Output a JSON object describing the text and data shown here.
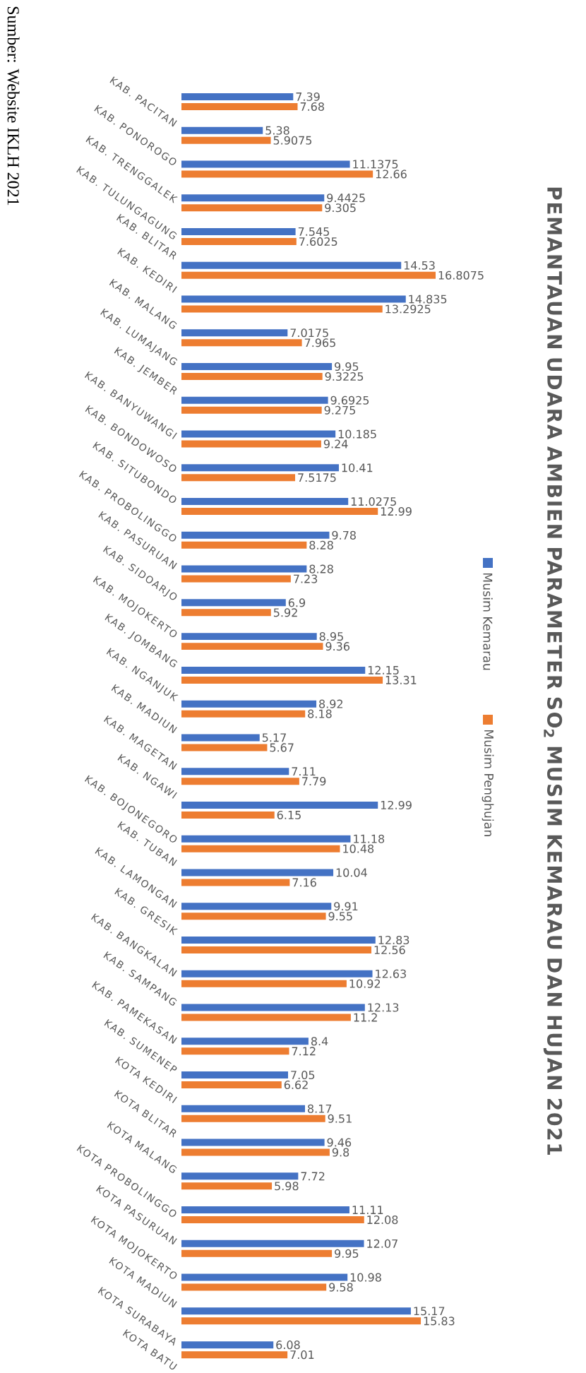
{
  "chart_data": {
    "type": "bar",
    "orientation": "horizontal",
    "title": "PEMANTAUAN UDARA AMBIEN PARAMETER SO$_{2}$ MUSIM KEMARAU DAN HUJAN 2021",
    "categories": [
      "KAB. PACITAN",
      "KAB. PONOROGO",
      "KAB. TRENGGALEK",
      "KAB. TULUNGAGUNG",
      "KAB. BLITAR",
      "KAB. KEDIRI",
      "KAB. MALANG",
      "KAB. LUMAJANG",
      "KAB. JEMBER",
      "KAB. BANYUWANGI",
      "KAB. BONDOWOSO",
      "KAB. SITUBONDO",
      "KAB. PROBOLINGGO",
      "KAB. PASURUAN",
      "KAB. SIDOARJO",
      "KAB. MOJOKERTO",
      "KAB. JOMBANG",
      "KAB. NGANJUK",
      "KAB. MADIUN",
      "KAB. MAGETAN",
      "KAB. NGAWI",
      "KAB. BOJONEGORO",
      "KAB. TUBAN",
      "KAB. LAMONGAN",
      "KAB. GRESIK",
      "KAB. BANGKALAN",
      "KAB. SAMPANG",
      "KAB. PAMEKASAN",
      "KAB. SUMENEP",
      "KOTA KEDIRI",
      "KOTA BLITAR",
      "KOTA MALANG",
      "KOTA PROBOLINGGO",
      "KOTA PASURUAN",
      "KOTA MOJOKERTO",
      "KOTA MADIUN",
      "KOTA SURABAYA",
      "KOTA BATU"
    ],
    "series": [
      {
        "name": "Musim Kemarau",
        "color": "#4472c4",
        "values": [
          7.39,
          5.38,
          11.1375,
          9.4425,
          7.545,
          14.53,
          14.835,
          7.0175,
          9.95,
          9.6925,
          10.185,
          10.41,
          11.0275,
          9.78,
          8.28,
          6.9,
          8.95,
          12.15,
          8.92,
          5.17,
          7.11,
          12.99,
          11.18,
          10.04,
          9.91,
          12.83,
          12.63,
          12.13,
          8.4,
          7.05,
          8.17,
          9.46,
          7.72,
          11.11,
          12.07,
          10.98,
          15.17,
          6.08
        ],
        "value_labels": [
          "7.39",
          "5.38",
          "11.1375",
          "9.4425",
          "7.545",
          "14.53",
          "14.835",
          "7.0175",
          "9.95",
          "9.6925",
          "10.185",
          "10.41",
          "11.0275",
          "9.78",
          "8.28",
          "6.9",
          "8.95",
          "12.15",
          "8.92",
          "5.17",
          "7.11",
          "12.99",
          "11.18",
          "10.04",
          "9.91",
          "12.83",
          "12.63",
          "12.13",
          "8.4",
          "7.05",
          "8.17",
          "9.46",
          "7.72",
          "11.11",
          "12.07",
          "10.98",
          "15.17",
          "6.08"
        ]
      },
      {
        "name": "Musim Penghujan",
        "color": "#ed7d31",
        "values": [
          7.68,
          5.9075,
          12.66,
          9.305,
          7.6025,
          16.8075,
          13.2925,
          7.965,
          9.3225,
          9.275,
          9.24,
          7.5175,
          12.99,
          8.28,
          7.23,
          5.92,
          9.36,
          13.31,
          8.18,
          5.67,
          7.79,
          6.15,
          10.48,
          7.16,
          9.55,
          12.56,
          10.92,
          11.2,
          7.12,
          6.62,
          9.51,
          9.8,
          5.98,
          12.08,
          9.95,
          9.58,
          15.83,
          7.01
        ],
        "value_labels": [
          "7.68",
          "5.9075",
          "12.66",
          "9.305",
          "7.6025",
          "16.8075",
          "13.2925",
          "7.965",
          "9.3225",
          "9.275",
          "9.24",
          "7.5175",
          "12.99",
          "8.28",
          "7.23",
          "5.92",
          "9.36",
          "13.31",
          "8.18",
          "5.67",
          "7.79",
          "6.15",
          "10.48",
          "7.16",
          "9.55",
          "12.56",
          "10.92",
          "11.2",
          "7.12",
          "6.62",
          "9.51",
          "9.8",
          "5.98",
          "12.08",
          "9.95",
          "9.58",
          "15.83",
          "7.01"
        ]
      }
    ],
    "legend": "right",
    "annotations": [
      "Sumber: Website IKLH 2021"
    ]
  }
}
